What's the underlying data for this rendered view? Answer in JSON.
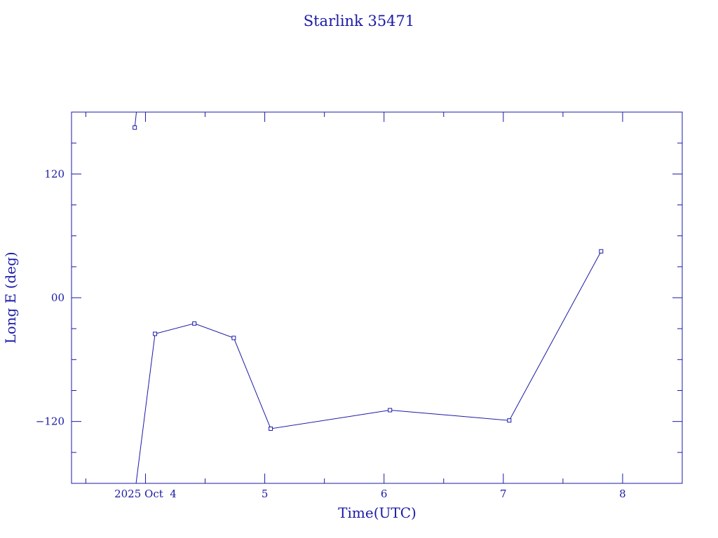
{
  "chart_data": {
    "type": "line",
    "title": "Starlink 35471",
    "xlabel": "Time(UTC)",
    "ylabel": "Long E (deg)",
    "xlim": [
      3.38,
      8.5
    ],
    "ylim": [
      -180,
      180
    ],
    "x_ticks": [
      {
        "value": 4,
        "label": "2025 Oct  4"
      },
      {
        "value": 5,
        "label": "5"
      },
      {
        "value": 6,
        "label": "6"
      },
      {
        "value": 7,
        "label": "7"
      },
      {
        "value": 8,
        "label": "8"
      }
    ],
    "y_ticks": [
      {
        "value": 120,
        "label": "120"
      },
      {
        "value": 0,
        "label": "00"
      },
      {
        "value": -120,
        "label": "−120"
      }
    ],
    "x_minor_step": 0.5,
    "y_minor_step": 30,
    "grid": false,
    "color": "#1a1aa6",
    "segments": [
      {
        "x": [
          3.91,
          3.93
        ],
        "y": [
          165,
          187
        ]
      },
      {
        "x": [
          3.91,
          4.08,
          4.41,
          4.74,
          5.05,
          6.05,
          7.05,
          7.82
        ],
        "y": [
          -190,
          -35,
          -25,
          -39,
          -127,
          -109,
          -119,
          45
        ]
      }
    ],
    "points": [
      {
        "x": 3.91,
        "y": 165
      },
      {
        "x": 4.08,
        "y": -35
      },
      {
        "x": 4.41,
        "y": -25
      },
      {
        "x": 4.74,
        "y": -39
      },
      {
        "x": 5.05,
        "y": -127
      },
      {
        "x": 6.05,
        "y": -109
      },
      {
        "x": 7.05,
        "y": -119
      },
      {
        "x": 7.82,
        "y": 45
      }
    ]
  }
}
